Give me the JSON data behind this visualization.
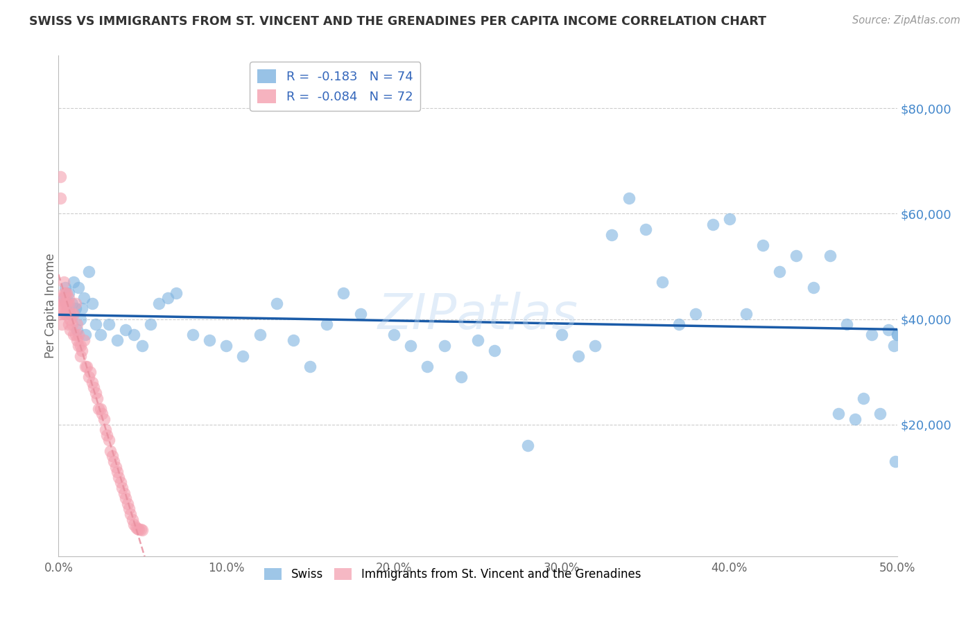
{
  "title": "SWISS VS IMMIGRANTS FROM ST. VINCENT AND THE GRENADINES PER CAPITA INCOME CORRELATION CHART",
  "source": "Source: ZipAtlas.com",
  "ylabel": "Per Capita Income",
  "ytick_labels": [
    "$20,000",
    "$40,000",
    "$60,000",
    "$80,000"
  ],
  "ytick_values": [
    20000,
    40000,
    60000,
    80000
  ],
  "ytick_grid": [
    20000,
    40000,
    60000,
    80000
  ],
  "ylim": [
    -5000,
    90000
  ],
  "xlim": [
    0.0,
    0.5
  ],
  "xtick_vals": [
    0.0,
    0.1,
    0.2,
    0.3,
    0.4,
    0.5
  ],
  "xtick_labels": [
    "0.0%",
    "10.0%",
    "20.0%",
    "30.0%",
    "40.0%",
    "50.0%"
  ],
  "legend_blue_r": "-0.183",
  "legend_blue_n": "74",
  "legend_pink_r": "-0.084",
  "legend_pink_n": "72",
  "blue_color": "#7EB3E0",
  "pink_color": "#F4A0B0",
  "trendline_blue_color": "#1A5BA8",
  "trendline_pink_color": "#E8909F",
  "background_color": "#FFFFFF",
  "grid_color": "#CCCCCC",
  "ytick_color": "#4488CC",
  "swiss_x": [
    0.003,
    0.004,
    0.005,
    0.006,
    0.007,
    0.008,
    0.009,
    0.01,
    0.011,
    0.012,
    0.013,
    0.014,
    0.015,
    0.016,
    0.018,
    0.02,
    0.022,
    0.025,
    0.03,
    0.035,
    0.04,
    0.045,
    0.05,
    0.055,
    0.06,
    0.065,
    0.07,
    0.08,
    0.09,
    0.1,
    0.11,
    0.12,
    0.13,
    0.14,
    0.15,
    0.16,
    0.17,
    0.18,
    0.2,
    0.21,
    0.22,
    0.23,
    0.24,
    0.25,
    0.26,
    0.28,
    0.3,
    0.31,
    0.32,
    0.33,
    0.34,
    0.35,
    0.36,
    0.37,
    0.38,
    0.39,
    0.4,
    0.41,
    0.42,
    0.43,
    0.44,
    0.45,
    0.46,
    0.465,
    0.47,
    0.475,
    0.48,
    0.485,
    0.49,
    0.495,
    0.498,
    0.499,
    0.5,
    0.5
  ],
  "swiss_y": [
    44000,
    46000,
    43000,
    45000,
    41000,
    43000,
    47000,
    42000,
    38000,
    46000,
    40000,
    42000,
    44000,
    37000,
    49000,
    43000,
    39000,
    37000,
    39000,
    36000,
    38000,
    37000,
    35000,
    39000,
    43000,
    44000,
    45000,
    37000,
    36000,
    35000,
    33000,
    37000,
    43000,
    36000,
    31000,
    39000,
    45000,
    41000,
    37000,
    35000,
    31000,
    35000,
    29000,
    36000,
    34000,
    16000,
    37000,
    33000,
    35000,
    56000,
    63000,
    57000,
    47000,
    39000,
    41000,
    58000,
    59000,
    41000,
    54000,
    49000,
    52000,
    46000,
    52000,
    22000,
    39000,
    21000,
    25000,
    37000,
    22000,
    38000,
    35000,
    13000,
    37000,
    37000
  ],
  "pink_x": [
    0.001,
    0.001,
    0.001,
    0.002,
    0.002,
    0.002,
    0.002,
    0.003,
    0.003,
    0.003,
    0.003,
    0.004,
    0.004,
    0.004,
    0.005,
    0.005,
    0.005,
    0.006,
    0.006,
    0.006,
    0.007,
    0.007,
    0.007,
    0.008,
    0.008,
    0.009,
    0.009,
    0.01,
    0.01,
    0.011,
    0.011,
    0.012,
    0.012,
    0.013,
    0.013,
    0.014,
    0.015,
    0.016,
    0.017,
    0.018,
    0.019,
    0.02,
    0.021,
    0.022,
    0.023,
    0.024,
    0.025,
    0.026,
    0.027,
    0.028,
    0.029,
    0.03,
    0.031,
    0.032,
    0.033,
    0.034,
    0.035,
    0.036,
    0.037,
    0.038,
    0.039,
    0.04,
    0.041,
    0.042,
    0.043,
    0.044,
    0.045,
    0.046,
    0.047,
    0.048,
    0.049,
    0.05
  ],
  "pink_y": [
    67000,
    63000,
    41000,
    44000,
    43000,
    42000,
    39000,
    47000,
    45000,
    43000,
    41000,
    45000,
    43000,
    41000,
    45000,
    43000,
    41000,
    44000,
    43000,
    39000,
    41000,
    40000,
    38000,
    41000,
    39000,
    41000,
    37000,
    43000,
    37000,
    39000,
    36000,
    37000,
    35000,
    35000,
    33000,
    34000,
    36000,
    31000,
    31000,
    29000,
    30000,
    28000,
    27000,
    26000,
    25000,
    23000,
    23000,
    22000,
    21000,
    19000,
    18000,
    17000,
    15000,
    14000,
    13000,
    12000,
    11000,
    10000,
    9000,
    8000,
    7000,
    6000,
    5000,
    4000,
    3000,
    2000,
    1000,
    500,
    200,
    100,
    50,
    10
  ]
}
